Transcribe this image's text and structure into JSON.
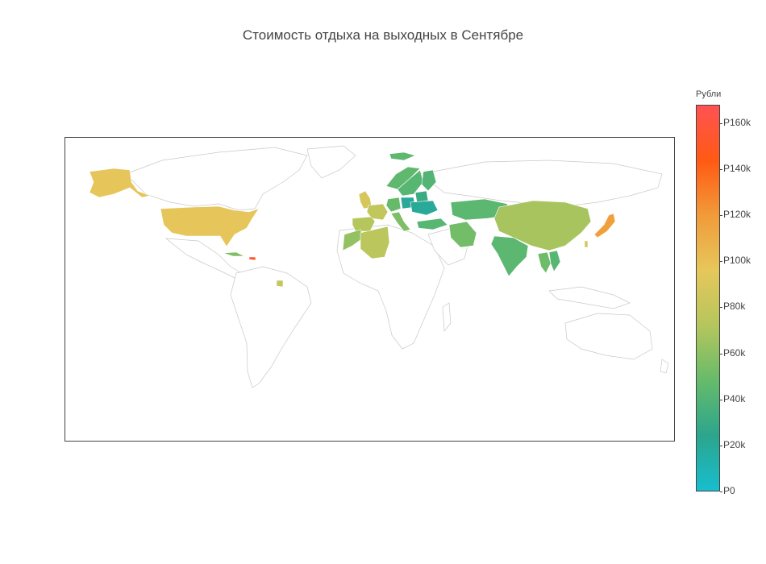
{
  "chart_data": {
    "type": "choropleth",
    "title": "Стоимость отдыха на выходных в Сентябре",
    "colorbar": {
      "title": "Рубли",
      "range": [
        0,
        168000
      ],
      "ticks": [
        {
          "value": 160000,
          "label": "P160k"
        },
        {
          "value": 140000,
          "label": "P140k"
        },
        {
          "value": 120000,
          "label": "P120k"
        },
        {
          "value": 100000,
          "label": "P100k"
        },
        {
          "value": 80000,
          "label": "P80k"
        },
        {
          "value": 60000,
          "label": "P60k"
        },
        {
          "value": 40000,
          "label": "P40k"
        },
        {
          "value": 20000,
          "label": "P20k"
        },
        {
          "value": 0,
          "label": "P0"
        }
      ],
      "colorscale": [
        "#17becf",
        "#2ca58d",
        "#66bb6a",
        "#b5c65d",
        "#e6c75b",
        "#f19b3a",
        "#ff5a14",
        "#ff5252"
      ]
    },
    "countries": [
      {
        "name": "United States",
        "value": 97000
      },
      {
        "name": "Alaska",
        "value": 97000
      },
      {
        "name": "Japan",
        "value": 118000
      },
      {
        "name": "China",
        "value": 68000
      },
      {
        "name": "India",
        "value": 44000
      },
      {
        "name": "Kazakhstan",
        "value": 44000
      },
      {
        "name": "Iran",
        "value": 52000
      },
      {
        "name": "Turkey",
        "value": 42000
      },
      {
        "name": "Algeria",
        "value": 75000
      },
      {
        "name": "Morocco",
        "value": 62000
      },
      {
        "name": "Spain",
        "value": 72000
      },
      {
        "name": "France",
        "value": 78000
      },
      {
        "name": "United Kingdom",
        "value": 88000
      },
      {
        "name": "Germany",
        "value": 48000
      },
      {
        "name": "Italy",
        "value": 55000
      },
      {
        "name": "Norway",
        "value": 45000
      },
      {
        "name": "Sweden",
        "value": 42000
      },
      {
        "name": "Finland",
        "value": 40000
      },
      {
        "name": "Ukraine",
        "value": 20000
      },
      {
        "name": "Belarus",
        "value": 30000
      },
      {
        "name": "Poland",
        "value": 40000
      },
      {
        "name": "Iceland",
        "value": 45000
      },
      {
        "name": "Cuba",
        "value": 55000
      },
      {
        "name": "Dominican Republic",
        "value": 150000
      },
      {
        "name": "Thailand",
        "value": 50000
      },
      {
        "name": "Vietnam",
        "value": 42000
      },
      {
        "name": "Taiwan",
        "value": 85000
      },
      {
        "name": "Suriname",
        "value": 80000
      }
    ]
  }
}
